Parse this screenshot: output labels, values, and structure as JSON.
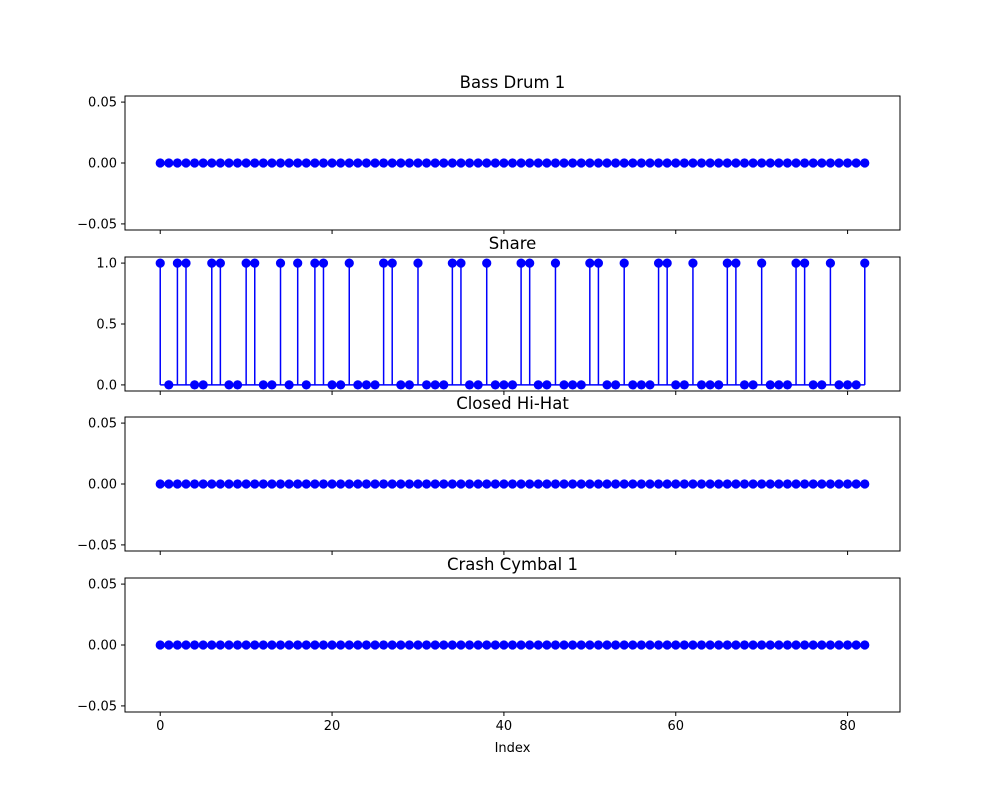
{
  "chart_data": {
    "type": "stem",
    "shared_x": true,
    "xlabel": "Index",
    "xlim": [
      -4.1,
      86.1
    ],
    "xticks": [
      0,
      20,
      40,
      60,
      80
    ],
    "color": "#0000ff",
    "x": [
      0,
      1,
      2,
      3,
      4,
      5,
      6,
      7,
      8,
      9,
      10,
      11,
      12,
      13,
      14,
      15,
      16,
      17,
      18,
      19,
      20,
      21,
      22,
      23,
      24,
      25,
      26,
      27,
      28,
      29,
      30,
      31,
      32,
      33,
      34,
      35,
      36,
      37,
      38,
      39,
      40,
      41,
      42,
      43,
      44,
      45,
      46,
      47,
      48,
      49,
      50,
      51,
      52,
      53,
      54,
      55,
      56,
      57,
      58,
      59,
      60,
      61,
      62,
      63,
      64,
      65,
      66,
      67,
      68,
      69,
      70,
      71,
      72,
      73,
      74,
      75,
      76,
      77,
      78,
      79,
      80,
      81,
      82
    ],
    "panels": [
      {
        "title": "Bass Drum 1",
        "ylim": [
          -0.055,
          0.055
        ],
        "yticks": [
          -0.05,
          0.0,
          0.05
        ],
        "ytick_labels": [
          "−0.05",
          "0.00",
          "0.05"
        ],
        "values": [
          0,
          0,
          0,
          0,
          0,
          0,
          0,
          0,
          0,
          0,
          0,
          0,
          0,
          0,
          0,
          0,
          0,
          0,
          0,
          0,
          0,
          0,
          0,
          0,
          0,
          0,
          0,
          0,
          0,
          0,
          0,
          0,
          0,
          0,
          0,
          0,
          0,
          0,
          0,
          0,
          0,
          0,
          0,
          0,
          0,
          0,
          0,
          0,
          0,
          0,
          0,
          0,
          0,
          0,
          0,
          0,
          0,
          0,
          0,
          0,
          0,
          0,
          0,
          0,
          0,
          0,
          0,
          0,
          0,
          0,
          0,
          0,
          0,
          0,
          0,
          0,
          0,
          0,
          0,
          0,
          0,
          0,
          0
        ]
      },
      {
        "title": "Snare",
        "ylim": [
          -0.05,
          1.05
        ],
        "yticks": [
          0.0,
          0.5,
          1.0
        ],
        "ytick_labels": [
          "0.0",
          "0.5",
          "1.0"
        ],
        "values": [
          1,
          0,
          1,
          1,
          0,
          0,
          1,
          1,
          0,
          0,
          1,
          1,
          0,
          0,
          1,
          0,
          1,
          0,
          1,
          1,
          0,
          0,
          1,
          0,
          0,
          0,
          1,
          1,
          0,
          0,
          1,
          0,
          0,
          0,
          1,
          1,
          0,
          0,
          1,
          0,
          0,
          0,
          1,
          1,
          0,
          0,
          1,
          0,
          0,
          0,
          1,
          1,
          0,
          0,
          1,
          0,
          0,
          0,
          1,
          1,
          0,
          0,
          1,
          0,
          0,
          0,
          1,
          1,
          0,
          0,
          1,
          0,
          0,
          0,
          1,
          1,
          0,
          0,
          1,
          0,
          0,
          0,
          1
        ]
      },
      {
        "title": "Closed Hi-Hat",
        "ylim": [
          -0.055,
          0.055
        ],
        "yticks": [
          -0.05,
          0.0,
          0.05
        ],
        "ytick_labels": [
          "−0.05",
          "0.00",
          "0.05"
        ],
        "values": [
          0,
          0,
          0,
          0,
          0,
          0,
          0,
          0,
          0,
          0,
          0,
          0,
          0,
          0,
          0,
          0,
          0,
          0,
          0,
          0,
          0,
          0,
          0,
          0,
          0,
          0,
          0,
          0,
          0,
          0,
          0,
          0,
          0,
          0,
          0,
          0,
          0,
          0,
          0,
          0,
          0,
          0,
          0,
          0,
          0,
          0,
          0,
          0,
          0,
          0,
          0,
          0,
          0,
          0,
          0,
          0,
          0,
          0,
          0,
          0,
          0,
          0,
          0,
          0,
          0,
          0,
          0,
          0,
          0,
          0,
          0,
          0,
          0,
          0,
          0,
          0,
          0,
          0,
          0,
          0,
          0,
          0,
          0
        ]
      },
      {
        "title": "Crash Cymbal 1",
        "ylim": [
          -0.055,
          0.055
        ],
        "yticks": [
          -0.05,
          0.0,
          0.05
        ],
        "ytick_labels": [
          "−0.05",
          "0.00",
          "0.05"
        ],
        "values": [
          0,
          0,
          0,
          0,
          0,
          0,
          0,
          0,
          0,
          0,
          0,
          0,
          0,
          0,
          0,
          0,
          0,
          0,
          0,
          0,
          0,
          0,
          0,
          0,
          0,
          0,
          0,
          0,
          0,
          0,
          0,
          0,
          0,
          0,
          0,
          0,
          0,
          0,
          0,
          0,
          0,
          0,
          0,
          0,
          0,
          0,
          0,
          0,
          0,
          0,
          0,
          0,
          0,
          0,
          0,
          0,
          0,
          0,
          0,
          0,
          0,
          0,
          0,
          0,
          0,
          0,
          0,
          0,
          0,
          0,
          0,
          0,
          0,
          0,
          0,
          0,
          0,
          0,
          0,
          0,
          0,
          0,
          0
        ]
      }
    ]
  }
}
